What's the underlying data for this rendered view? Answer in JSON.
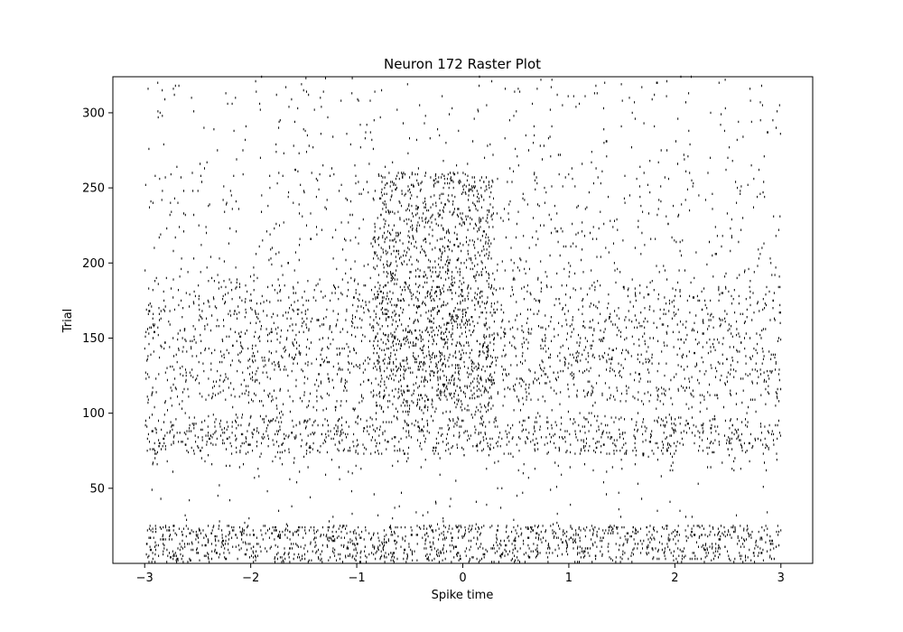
{
  "chart_data": {
    "type": "scatter",
    "subtype": "raster",
    "title": "Neuron 172 Raster Plot",
    "xlabel": "Spike time",
    "ylabel": "Trial",
    "xlim": [
      -3.3,
      3.3
    ],
    "ylim": [
      0,
      324
    ],
    "xticks": [
      -3,
      -2,
      -1,
      0,
      1,
      2,
      3
    ],
    "xtick_labels": [
      "−3",
      "−2",
      "−1",
      "0",
      "1",
      "2",
      "3"
    ],
    "yticks": [
      50,
      100,
      150,
      200,
      250,
      300
    ],
    "ytick_labels": [
      "50",
      "100",
      "150",
      "200",
      "250",
      "300"
    ],
    "grid": false,
    "marker": "|",
    "marker_color": "#000000",
    "spike_time_range": [
      -3,
      3
    ],
    "num_trials": 324,
    "density_profile": [
      {
        "trials": [
          0,
          25
        ],
        "spikes_per_trial": 55
      },
      {
        "trials": [
          25,
          35
        ],
        "spikes_per_trial": 3
      },
      {
        "trials": [
          35,
          60
        ],
        "spikes_per_trial": 2
      },
      {
        "trials": [
          60,
          72
        ],
        "spikes_per_trial": 6
      },
      {
        "trials": [
          72,
          97
        ],
        "spikes_per_trial": 38
      },
      {
        "trials": [
          97,
          107
        ],
        "spikes_per_trial": 10
      },
      {
        "trials": [
          107,
          185
        ],
        "spikes_per_trial": 26
      },
      {
        "trials": [
          185,
          200
        ],
        "spikes_per_trial": 10
      },
      {
        "trials": [
          200,
          260
        ],
        "spikes_per_trial": 7
      },
      {
        "trials": [
          260,
          324
        ],
        "spikes_per_trial": 4
      }
    ],
    "window_burst": {
      "time_range": [
        -0.85,
        0.3
      ],
      "trials": [
        100,
        260
      ],
      "extra_spikes_per_trial": 8
    }
  }
}
